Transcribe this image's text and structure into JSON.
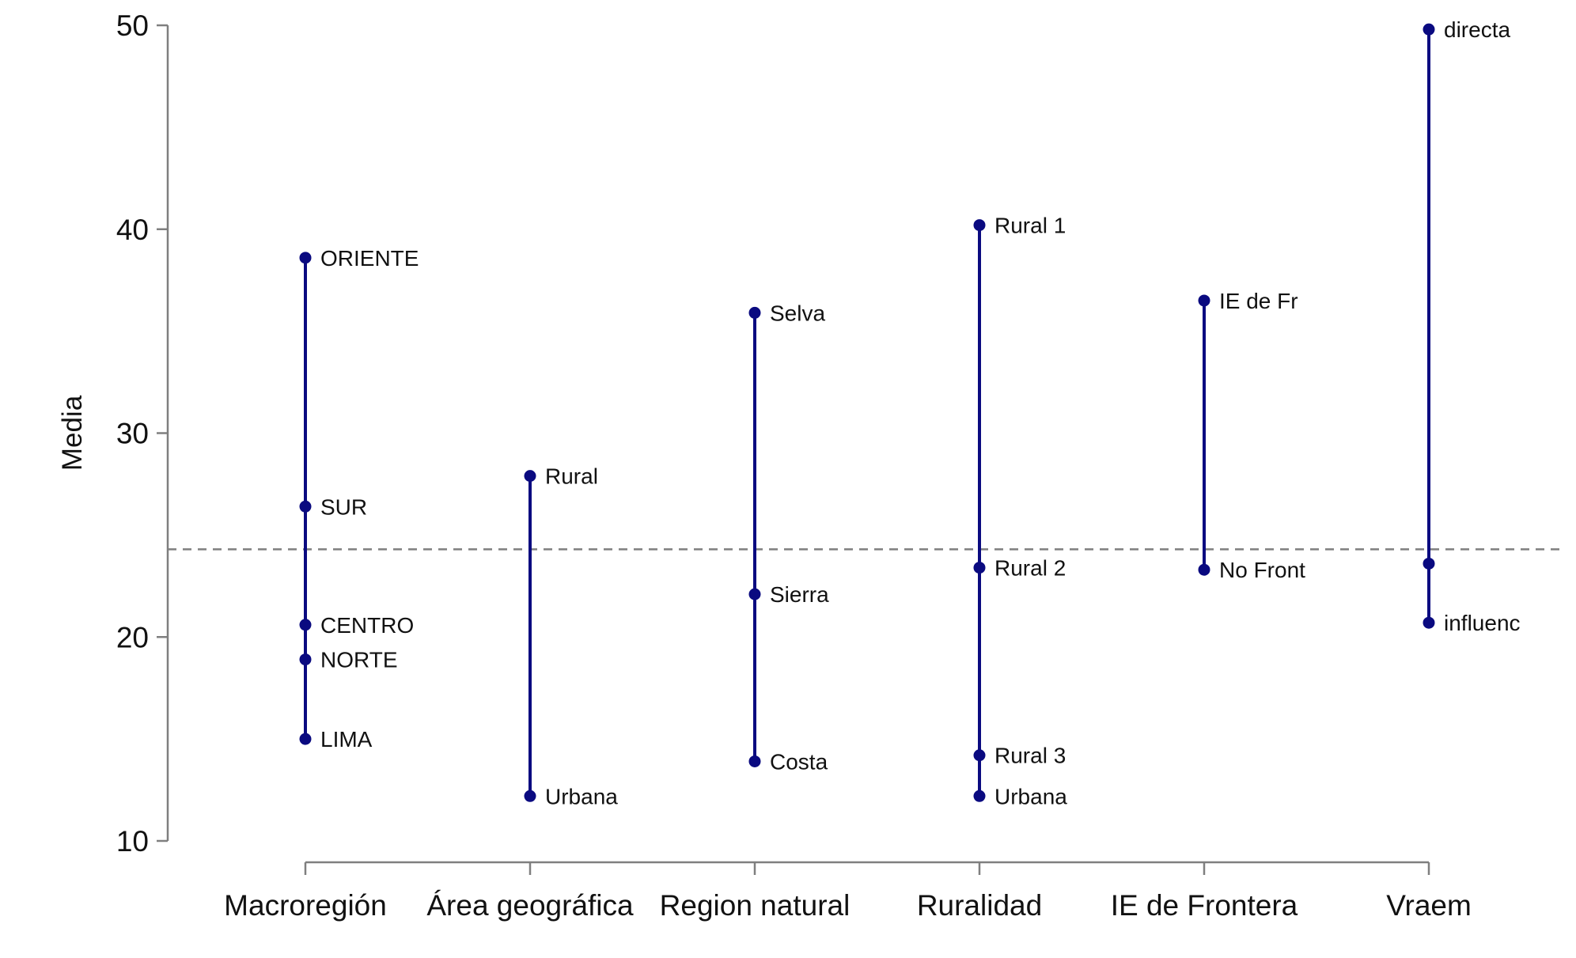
{
  "chart_data": {
    "type": "dot-range",
    "title": "",
    "xlabel": "",
    "ylabel": "Media",
    "ylim": [
      10,
      50
    ],
    "yticks": [
      10,
      20,
      30,
      40,
      50
    ],
    "reference_line": 24.3,
    "colors": {
      "series": "#0a0a80",
      "axis": "#7f7f7f",
      "reference": "#7f7f7f"
    },
    "categories": [
      "Macroregión",
      "Área geográfica",
      "Region natural",
      "Ruralidad",
      "IE de Frontera",
      "Vraem"
    ],
    "groups": [
      {
        "category": "Macroregión",
        "points": [
          {
            "label": "ORIENTE",
            "value": 38.6
          },
          {
            "label": "SUR",
            "value": 26.4
          },
          {
            "label": "CENTRO",
            "value": 20.6
          },
          {
            "label": "NORTE",
            "value": 18.9
          },
          {
            "label": "LIMA",
            "value": 15.0
          }
        ]
      },
      {
        "category": "Área geográfica",
        "points": [
          {
            "label": "Rural",
            "value": 27.9
          },
          {
            "label": "Urbana",
            "value": 12.2
          }
        ]
      },
      {
        "category": "Region natural",
        "points": [
          {
            "label": "Selva",
            "value": 35.9
          },
          {
            "label": "Sierra",
            "value": 22.1
          },
          {
            "label": "Costa",
            "value": 13.9
          }
        ]
      },
      {
        "category": "Ruralidad",
        "points": [
          {
            "label": "Rural 1",
            "value": 40.2
          },
          {
            "label": "Rural 2",
            "value": 23.4
          },
          {
            "label": "Rural 3",
            "value": 14.2
          },
          {
            "label": "Urbana",
            "value": 12.2
          }
        ]
      },
      {
        "category": "IE de Frontera",
        "points": [
          {
            "label": "IE de Fr",
            "value": 36.5
          },
          {
            "label": "No Front",
            "value": 23.3
          }
        ]
      },
      {
        "category": "Vraem",
        "points": [
          {
            "label": "directa",
            "value": 49.8
          },
          {
            "label": "",
            "value": 23.6
          },
          {
            "label": "influenc",
            "value": 20.7
          }
        ]
      }
    ]
  }
}
